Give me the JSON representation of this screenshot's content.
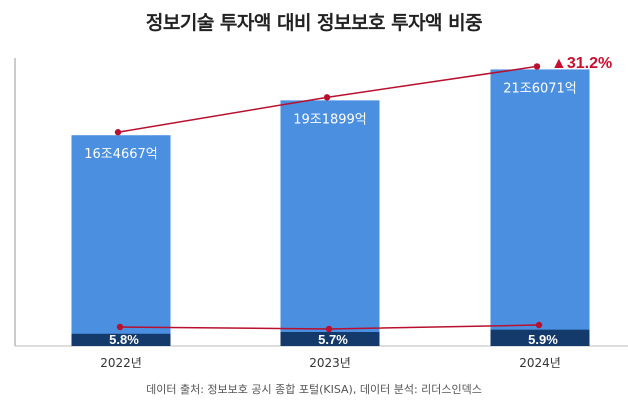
{
  "chart_data": {
    "type": "bar",
    "title": "정보기술 투자액 대비 정보보호 투자액 비중",
    "categories": [
      "2022년",
      "2023년",
      "2024년"
    ],
    "series": [
      {
        "values": [
          16.4667,
          19.1899,
          21.6071
        ],
        "labels": [
          "16조4667억",
          "19조1899억",
          "21조6071억"
        ],
        "unit": "조원"
      },
      {
        "values": [
          5.8,
          5.7,
          5.9
        ],
        "labels": [
          "5.8%",
          "5.7%",
          "5.9%"
        ],
        "unit": "%"
      }
    ],
    "annotation": "▲31.2%",
    "ylim": [
      0,
      22.5
    ],
    "grid": false,
    "colors": {
      "bar": "#4a8fe0",
      "share": "#143a6b",
      "line": "#b8102e",
      "annotation": "#c8102e"
    }
  },
  "source": "데이터 출처: 정보보호 공시 종합 포털(KISA), 데이터 분석: 리더스인덱스"
}
